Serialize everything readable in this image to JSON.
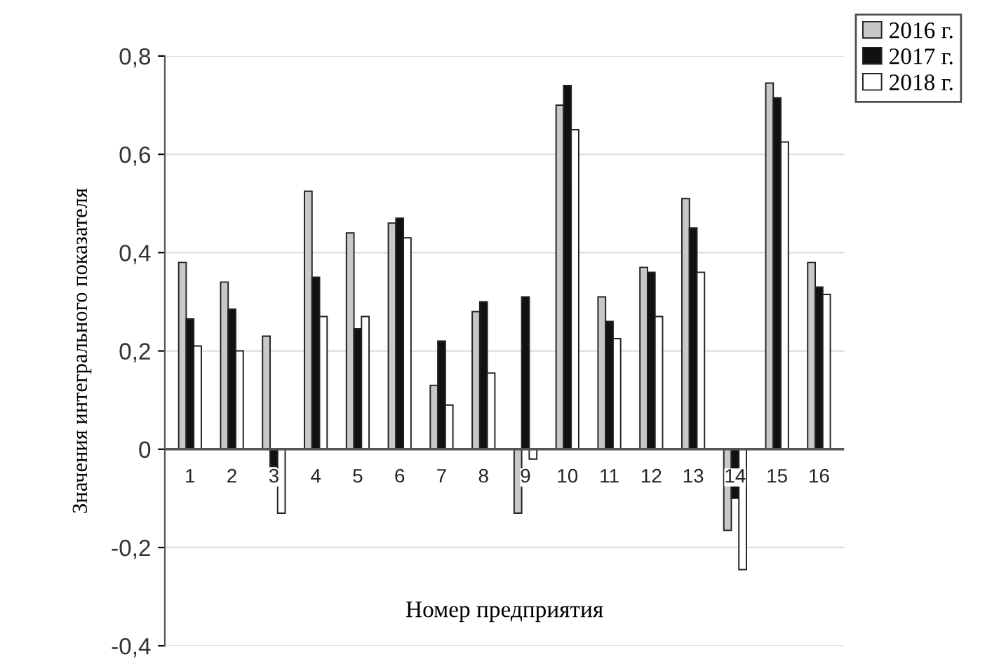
{
  "chart_data": {
    "type": "bar",
    "xlabel": "Номер предприятия",
    "ylabel": "Значения интегрального показателя",
    "categories": [
      "1",
      "2",
      "3",
      "4",
      "5",
      "6",
      "7",
      "8",
      "9",
      "10",
      "11",
      "12",
      "13",
      "14",
      "15",
      "16"
    ],
    "series": [
      {
        "name": "2016 г.",
        "color": "#c8c8c8",
        "values": [
          0.38,
          0.34,
          0.23,
          0.525,
          0.44,
          0.46,
          0.13,
          0.28,
          -0.13,
          0.7,
          0.31,
          0.37,
          0.51,
          -0.165,
          0.745,
          0.38
        ]
      },
      {
        "name": "2017 г.",
        "color": "#111111",
        "values": [
          0.265,
          0.285,
          -0.035,
          0.35,
          0.245,
          0.47,
          0.22,
          0.3,
          0.31,
          0.74,
          0.26,
          0.36,
          0.45,
          -0.1,
          0.715,
          0.33
        ]
      },
      {
        "name": "2018 г.",
        "color": "#ffffff",
        "values": [
          0.21,
          0.2,
          -0.13,
          0.27,
          0.27,
          0.43,
          0.09,
          0.155,
          -0.02,
          0.65,
          0.225,
          0.27,
          0.36,
          -0.245,
          0.625,
          0.315
        ]
      }
    ],
    "ylim": [
      -0.4,
      0.8
    ],
    "yticks": [
      {
        "value": -0.4,
        "label": "-0,4"
      },
      {
        "value": -0.2,
        "label": "-0,2"
      },
      0,
      {
        "value": 0.2,
        "label": "0,2"
      },
      {
        "value": 0.4,
        "label": "0,4"
      },
      {
        "value": 0.6,
        "label": "0,6"
      },
      {
        "value": 0.8,
        "label": "0,8"
      }
    ],
    "grid": "y",
    "legend": "top right"
  }
}
